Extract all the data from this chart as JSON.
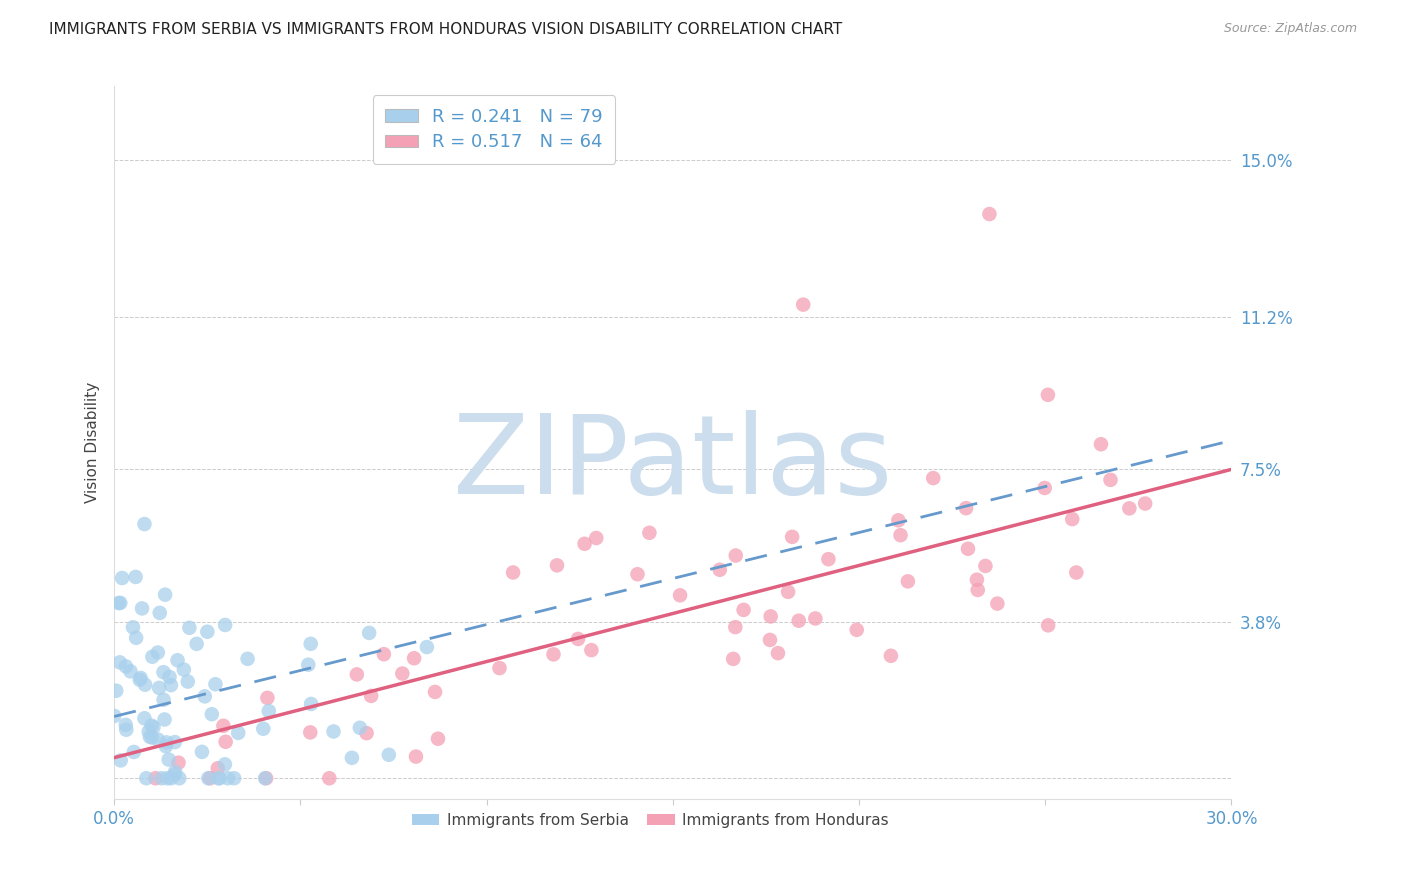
{
  "title": "IMMIGRANTS FROM SERBIA VS IMMIGRANTS FROM HONDURAS VISION DISABILITY CORRELATION CHART",
  "source": "Source: ZipAtlas.com",
  "xlabel": "",
  "ylabel": "Vision Disability",
  "legend_label1": "Immigrants from Serbia",
  "legend_label2": "Immigrants from Honduras",
  "R1": 0.241,
  "N1": 79,
  "R2": 0.517,
  "N2": 64,
  "color1": "#A8D0EC",
  "color2": "#F4A0B5",
  "trendline1_color": "#6699CC",
  "trendline2_color": "#E06080",
  "xlim": [
    0.0,
    0.3
  ],
  "ylim": [
    -0.005,
    0.168
  ],
  "yticks": [
    0.0,
    0.038,
    0.075,
    0.112,
    0.15
  ],
  "ytick_labels": [
    "",
    "3.8%",
    "7.5%",
    "11.2%",
    "15.0%"
  ],
  "xticks": [
    0.0,
    0.05,
    0.1,
    0.15,
    0.2,
    0.25,
    0.3
  ],
  "xtick_labels": [
    "0.0%",
    "",
    "",
    "",
    "",
    "",
    "30.0%"
  ],
  "background_color": "#ffffff",
  "watermark": "ZIPatlas",
  "watermark_color": "#ccdded",
  "title_fontsize": 11,
  "axis_label_fontsize": 10,
  "tick_label_color": "#5599CC"
}
